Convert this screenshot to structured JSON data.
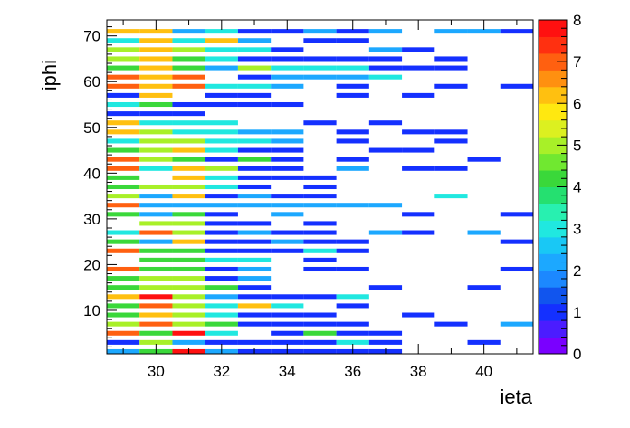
{
  "chart_data": {
    "type": "heatmap",
    "title": "",
    "xlabel": "ieta",
    "ylabel": "iphi",
    "xlim": [
      28.5,
      41.5
    ],
    "ylim": [
      0.5,
      73.5
    ],
    "x_ticks": [
      "30",
      "32",
      "34",
      "36",
      "38",
      "40"
    ],
    "y_ticks": [
      "10",
      "20",
      "30",
      "40",
      "50",
      "60",
      "70"
    ],
    "zlim": [
      0,
      8
    ],
    "colorbar_ticks": [
      "0",
      "1",
      "2",
      "3",
      "4",
      "5",
      "6",
      "7",
      "8"
    ],
    "palette": [
      "#7a00ff",
      "#4b1cff",
      "#1430ff",
      "#1155ee",
      "#1c88ff",
      "#1ca8ff",
      "#19c8f5",
      "#20e8e0",
      "#28f0b0",
      "#25e070",
      "#3ad83a",
      "#70e830",
      "#a8f028",
      "#dcf020",
      "#ffe810",
      "#ffc010",
      "#ff9010",
      "#ff6010",
      "#ff3010",
      "#ff1010"
    ],
    "cells": [
      [
        1,
        29,
        2
      ],
      [
        1,
        30,
        4
      ],
      [
        1,
        31,
        8
      ],
      [
        1,
        32,
        2
      ],
      [
        1,
        33,
        1
      ],
      [
        1,
        34,
        1
      ],
      [
        1,
        35,
        1
      ],
      [
        1,
        36,
        1
      ],
      [
        1,
        37,
        1
      ],
      [
        3,
        29,
        1
      ],
      [
        3,
        30,
        5
      ],
      [
        3,
        31,
        2
      ],
      [
        3,
        32,
        1
      ],
      [
        3,
        33,
        1
      ],
      [
        3,
        34,
        1
      ],
      [
        3,
        35,
        1
      ],
      [
        3,
        36,
        3
      ],
      [
        3,
        37,
        1
      ],
      [
        3,
        40,
        1
      ],
      [
        5,
        29,
        7
      ],
      [
        5,
        30,
        4
      ],
      [
        5,
        31,
        8
      ],
      [
        5,
        32,
        3
      ],
      [
        5,
        34,
        1
      ],
      [
        5,
        35,
        4
      ],
      [
        5,
        36,
        1
      ],
      [
        5,
        37,
        1
      ],
      [
        7,
        29,
        5
      ],
      [
        7,
        30,
        7
      ],
      [
        7,
        31,
        5
      ],
      [
        7,
        32,
        4
      ],
      [
        7,
        33,
        1
      ],
      [
        7,
        34,
        1
      ],
      [
        7,
        35,
        1
      ],
      [
        7,
        36,
        1
      ],
      [
        7,
        39,
        1
      ],
      [
        7,
        41,
        2
      ],
      [
        9,
        29,
        4
      ],
      [
        9,
        30,
        6
      ],
      [
        9,
        31,
        5
      ],
      [
        9,
        32,
        3
      ],
      [
        9,
        33,
        1
      ],
      [
        9,
        34,
        1
      ],
      [
        9,
        35,
        1
      ],
      [
        9,
        38,
        1
      ],
      [
        11,
        29,
        4
      ],
      [
        11,
        30,
        7
      ],
      [
        11,
        31,
        5
      ],
      [
        11,
        32,
        3
      ],
      [
        11,
        33,
        6
      ],
      [
        11,
        34,
        3
      ],
      [
        11,
        36,
        1
      ],
      [
        13,
        29,
        6
      ],
      [
        13,
        30,
        8
      ],
      [
        13,
        31,
        5
      ],
      [
        13,
        32,
        2
      ],
      [
        13,
        33,
        1
      ],
      [
        13,
        34,
        1
      ],
      [
        13,
        35,
        1
      ],
      [
        13,
        36,
        3
      ],
      [
        15,
        29,
        4
      ],
      [
        15,
        30,
        5
      ],
      [
        15,
        31,
        5
      ],
      [
        15,
        32,
        4
      ],
      [
        15,
        33,
        1
      ],
      [
        15,
        37,
        1
      ],
      [
        15,
        40,
        1
      ],
      [
        17,
        29,
        4
      ],
      [
        17,
        30,
        5
      ],
      [
        17,
        31,
        5
      ],
      [
        17,
        32,
        1
      ],
      [
        17,
        33,
        2
      ],
      [
        19,
        29,
        7
      ],
      [
        19,
        30,
        4
      ],
      [
        19,
        31,
        4
      ],
      [
        19,
        32,
        1
      ],
      [
        19,
        33,
        2
      ],
      [
        19,
        35,
        1
      ],
      [
        19,
        36,
        1
      ],
      [
        19,
        41,
        1
      ],
      [
        21,
        30,
        4
      ],
      [
        21,
        31,
        4
      ],
      [
        21,
        32,
        3
      ],
      [
        21,
        33,
        3
      ],
      [
        21,
        35,
        1
      ],
      [
        23,
        29,
        7
      ],
      [
        23,
        30,
        4
      ],
      [
        23,
        31,
        4
      ],
      [
        23,
        32,
        1
      ],
      [
        23,
        33,
        1
      ],
      [
        23,
        34,
        1
      ],
      [
        23,
        35,
        3
      ],
      [
        23,
        36,
        1
      ],
      [
        25,
        29,
        4
      ],
      [
        25,
        30,
        2
      ],
      [
        25,
        31,
        6
      ],
      [
        25,
        32,
        1
      ],
      [
        25,
        33,
        1
      ],
      [
        25,
        34,
        2
      ],
      [
        25,
        35,
        1
      ],
      [
        25,
        36,
        1
      ],
      [
        25,
        41,
        1
      ],
      [
        27,
        29,
        3
      ],
      [
        27,
        30,
        7
      ],
      [
        27,
        31,
        5
      ],
      [
        27,
        32,
        1
      ],
      [
        27,
        33,
        2
      ],
      [
        27,
        34,
        1
      ],
      [
        27,
        35,
        1
      ],
      [
        27,
        37,
        2
      ],
      [
        27,
        38,
        1
      ],
      [
        27,
        40,
        2
      ],
      [
        29,
        30,
        5
      ],
      [
        29,
        31,
        5
      ],
      [
        29,
        32,
        1
      ],
      [
        29,
        33,
        1
      ],
      [
        29,
        35,
        1
      ],
      [
        31,
        29,
        4
      ],
      [
        31,
        30,
        2
      ],
      [
        31,
        31,
        4
      ],
      [
        31,
        32,
        1
      ],
      [
        31,
        34,
        2
      ],
      [
        31,
        38,
        1
      ],
      [
        31,
        41,
        1
      ],
      [
        33,
        29,
        7
      ],
      [
        33,
        30,
        2
      ],
      [
        33,
        31,
        2
      ],
      [
        33,
        32,
        2
      ],
      [
        33,
        33,
        2
      ],
      [
        33,
        34,
        2
      ],
      [
        33,
        35,
        2
      ],
      [
        33,
        36,
        2
      ],
      [
        33,
        37,
        2
      ],
      [
        35,
        29,
        5
      ],
      [
        35,
        30,
        2
      ],
      [
        35,
        31,
        6
      ],
      [
        35,
        32,
        1
      ],
      [
        35,
        33,
        2
      ],
      [
        35,
        34,
        1
      ],
      [
        35,
        35,
        1
      ],
      [
        35,
        39,
        3
      ],
      [
        37,
        29,
        4
      ],
      [
        37,
        30,
        5
      ],
      [
        37,
        31,
        5
      ],
      [
        37,
        32,
        3
      ],
      [
        37,
        33,
        1
      ],
      [
        37,
        35,
        1
      ],
      [
        39,
        29,
        4
      ],
      [
        39,
        31,
        6
      ],
      [
        39,
        32,
        3
      ],
      [
        39,
        33,
        1
      ],
      [
        39,
        34,
        1
      ],
      [
        39,
        35,
        1
      ],
      [
        41,
        29,
        7
      ],
      [
        41,
        30,
        3
      ],
      [
        41,
        31,
        6
      ],
      [
        41,
        32,
        5
      ],
      [
        41,
        33,
        1
      ],
      [
        41,
        34,
        1
      ],
      [
        41,
        36,
        2
      ],
      [
        41,
        38,
        1
      ],
      [
        41,
        39,
        1
      ],
      [
        43,
        29,
        7
      ],
      [
        43,
        30,
        5
      ],
      [
        43,
        31,
        4
      ],
      [
        43,
        32,
        1
      ],
      [
        43,
        33,
        4
      ],
      [
        43,
        34,
        1
      ],
      [
        43,
        36,
        1
      ],
      [
        43,
        40,
        1
      ],
      [
        45,
        29,
        4
      ],
      [
        45,
        30,
        5
      ],
      [
        45,
        31,
        6
      ],
      [
        45,
        32,
        3
      ],
      [
        45,
        33,
        1
      ],
      [
        45,
        34,
        1
      ],
      [
        45,
        37,
        1
      ],
      [
        45,
        38,
        1
      ],
      [
        47,
        29,
        3
      ],
      [
        47,
        30,
        5
      ],
      [
        47,
        31,
        5
      ],
      [
        47,
        32,
        3
      ],
      [
        47,
        33,
        3
      ],
      [
        47,
        34,
        2
      ],
      [
        47,
        36,
        1
      ],
      [
        47,
        39,
        1
      ],
      [
        49,
        29,
        6
      ],
      [
        49,
        30,
        5
      ],
      [
        49,
        31,
        3
      ],
      [
        49,
        32,
        3
      ],
      [
        49,
        33,
        2
      ],
      [
        49,
        34,
        2
      ],
      [
        49,
        36,
        1
      ],
      [
        49,
        38,
        1
      ],
      [
        49,
        39,
        1
      ],
      [
        51,
        29,
        6
      ],
      [
        51,
        30,
        3
      ],
      [
        51,
        31,
        3
      ],
      [
        51,
        32,
        3
      ],
      [
        51,
        35,
        1
      ],
      [
        51,
        37,
        1
      ],
      [
        53,
        29,
        1
      ],
      [
        53,
        30,
        1
      ],
      [
        53,
        31,
        1
      ],
      [
        55,
        29,
        3
      ],
      [
        55,
        30,
        4
      ],
      [
        55,
        31,
        1
      ],
      [
        55,
        32,
        1
      ],
      [
        55,
        33,
        1
      ],
      [
        55,
        34,
        1
      ],
      [
        57,
        29,
        1
      ],
      [
        57,
        30,
        6
      ],
      [
        57,
        32,
        1
      ],
      [
        57,
        33,
        1
      ],
      [
        57,
        36,
        1
      ],
      [
        57,
        38,
        1
      ],
      [
        59,
        29,
        7
      ],
      [
        59,
        30,
        6
      ],
      [
        59,
        31,
        7
      ],
      [
        59,
        32,
        3
      ],
      [
        59,
        33,
        3
      ],
      [
        59,
        34,
        2
      ],
      [
        59,
        36,
        1
      ],
      [
        59,
        39,
        1
      ],
      [
        59,
        41,
        1
      ],
      [
        61,
        29,
        7
      ],
      [
        61,
        30,
        6
      ],
      [
        61,
        31,
        7
      ],
      [
        61,
        33,
        1
      ],
      [
        61,
        34,
        2
      ],
      [
        61,
        35,
        2
      ],
      [
        61,
        36,
        2
      ],
      [
        61,
        37,
        3
      ],
      [
        63,
        29,
        4
      ],
      [
        63,
        30,
        6
      ],
      [
        63,
        31,
        4
      ],
      [
        63,
        32,
        2
      ],
      [
        63,
        33,
        5
      ],
      [
        63,
        34,
        3
      ],
      [
        63,
        35,
        3
      ],
      [
        63,
        36,
        3
      ],
      [
        63,
        37,
        1
      ],
      [
        63,
        38,
        1
      ],
      [
        63,
        39,
        1
      ],
      [
        65,
        29,
        5
      ],
      [
        65,
        30,
        6
      ],
      [
        65,
        31,
        4
      ],
      [
        65,
        32,
        3
      ],
      [
        65,
        33,
        1
      ],
      [
        65,
        34,
        1
      ],
      [
        65,
        35,
        1
      ],
      [
        65,
        36,
        1
      ],
      [
        65,
        37,
        1
      ],
      [
        65,
        39,
        1
      ],
      [
        67,
        29,
        5
      ],
      [
        67,
        30,
        6
      ],
      [
        67,
        31,
        5
      ],
      [
        67,
        32,
        3
      ],
      [
        67,
        33,
        3
      ],
      [
        67,
        34,
        1
      ],
      [
        67,
        37,
        2
      ],
      [
        67,
        38,
        1
      ],
      [
        69,
        29,
        3
      ],
      [
        69,
        30,
        6
      ],
      [
        69,
        31,
        3
      ],
      [
        69,
        32,
        6
      ],
      [
        69,
        33,
        2
      ],
      [
        69,
        35,
        1
      ],
      [
        69,
        36,
        1
      ],
      [
        71,
        29,
        6
      ],
      [
        71,
        30,
        6
      ],
      [
        71,
        31,
        2
      ],
      [
        71,
        32,
        3
      ],
      [
        71,
        33,
        1
      ],
      [
        71,
        34,
        1
      ],
      [
        71,
        35,
        2
      ],
      [
        71,
        36,
        1
      ],
      [
        71,
        37,
        2
      ],
      [
        71,
        39,
        2
      ],
      [
        71,
        40,
        2
      ],
      [
        71,
        41,
        1
      ]
    ]
  }
}
